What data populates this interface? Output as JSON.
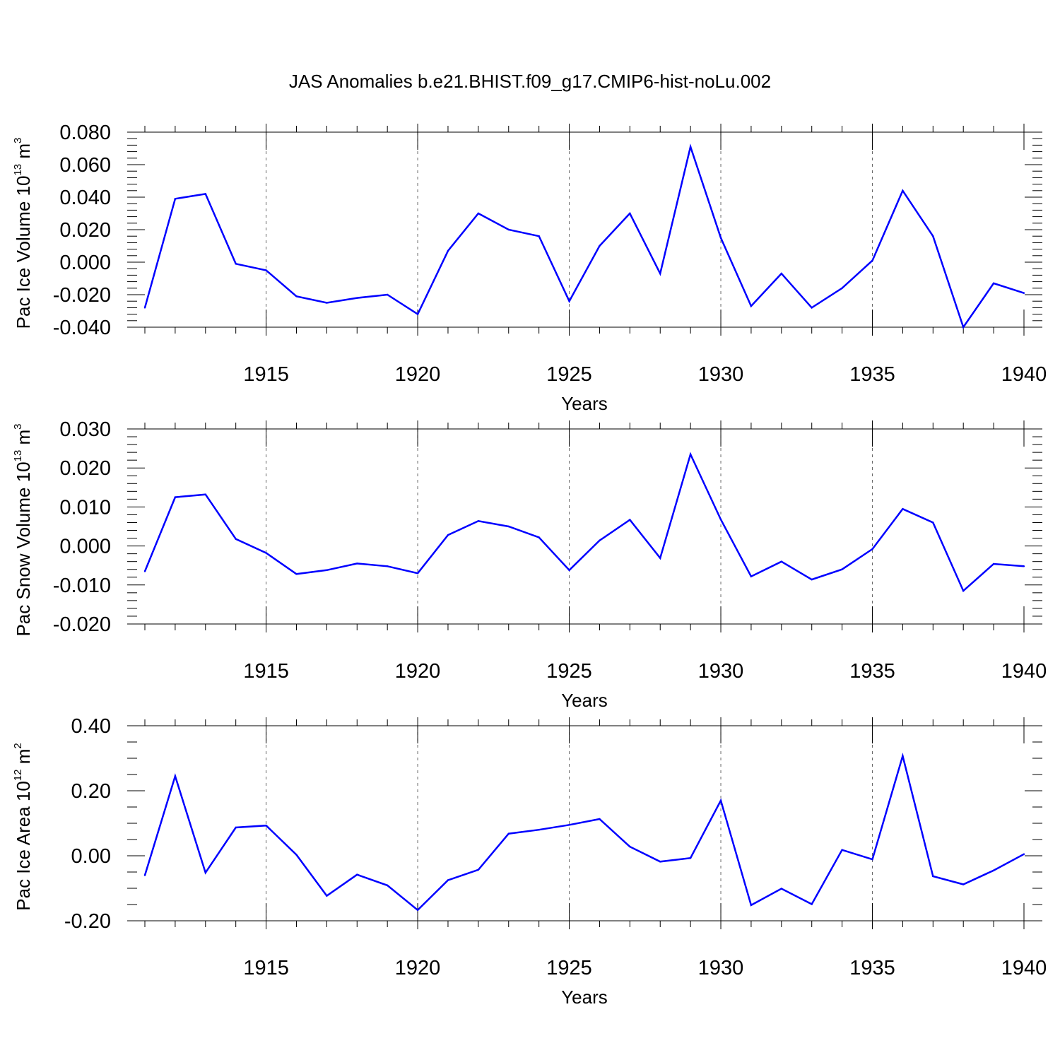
{
  "figure": {
    "title": "JAS Anomalies b.e21.BHIST.f09_g17.CMIP6-hist-noLu.002"
  },
  "chart_data": [
    {
      "type": "line",
      "xlabel": "Years",
      "ylabel_parts": [
        "Pac Ice Volume 10",
        "13",
        " m",
        "3"
      ],
      "xlim": [
        1911,
        1940
      ],
      "ylim": [
        -0.04,
        0.08
      ],
      "x_ticks": [
        1915,
        1920,
        1925,
        1930,
        1935,
        1940
      ],
      "y_ticks": [
        -0.04,
        -0.02,
        0.0,
        0.02,
        0.04,
        0.06,
        0.08
      ],
      "y_tick_labels": [
        "-0.040",
        "-0.020",
        "0.000",
        "0.020",
        "0.040",
        "0.060",
        "0.080"
      ],
      "y_minor_step": 0.004,
      "grid": "dashed vertical at major x ticks",
      "line_color": "#0000ff",
      "x": [
        1911,
        1912,
        1913,
        1914,
        1915,
        1916,
        1917,
        1918,
        1919,
        1920,
        1921,
        1922,
        1923,
        1924,
        1925,
        1926,
        1927,
        1928,
        1929,
        1930,
        1931,
        1932,
        1933,
        1934,
        1935,
        1936,
        1937,
        1938,
        1939,
        1940
      ],
      "y": [
        -0.028,
        0.039,
        0.042,
        -0.001,
        -0.005,
        -0.021,
        -0.025,
        -0.022,
        -0.02,
        -0.032,
        0.007,
        0.03,
        0.02,
        0.016,
        -0.024,
        0.01,
        0.03,
        -0.007,
        0.071,
        0.015,
        -0.027,
        -0.007,
        -0.028,
        -0.016,
        0.001,
        0.044,
        0.016,
        -0.04,
        -0.013,
        -0.019
      ]
    },
    {
      "type": "line",
      "xlabel": "Years",
      "ylabel_parts": [
        "Pac Snow Volume 10",
        "13",
        " m",
        "3"
      ],
      "xlim": [
        1911,
        1940
      ],
      "ylim": [
        -0.02,
        0.03
      ],
      "x_ticks": [
        1915,
        1920,
        1925,
        1930,
        1935,
        1940
      ],
      "y_ticks": [
        -0.02,
        -0.01,
        0.0,
        0.01,
        0.02,
        0.03
      ],
      "y_tick_labels": [
        "-0.020",
        "-0.010",
        "0.000",
        "0.010",
        "0.020",
        "0.030"
      ],
      "y_minor_step": 0.002,
      "grid": "dashed vertical at major x ticks",
      "line_color": "#0000ff",
      "x": [
        1911,
        1912,
        1913,
        1914,
        1915,
        1916,
        1917,
        1918,
        1919,
        1920,
        1921,
        1922,
        1923,
        1924,
        1925,
        1926,
        1927,
        1928,
        1929,
        1930,
        1931,
        1932,
        1933,
        1934,
        1935,
        1936,
        1937,
        1938,
        1939,
        1940
      ],
      "y": [
        -0.0065,
        0.0125,
        0.0132,
        0.0018,
        -0.0018,
        -0.0072,
        -0.0062,
        -0.0045,
        -0.0052,
        -0.007,
        0.0028,
        0.0064,
        0.005,
        0.0022,
        -0.0062,
        0.0014,
        0.0067,
        -0.0031,
        0.0235,
        0.0068,
        -0.0078,
        -0.004,
        -0.0086,
        -0.006,
        -0.0008,
        0.0095,
        0.006,
        -0.0115,
        -0.0046,
        -0.0052
      ]
    },
    {
      "type": "line",
      "xlabel": "Years",
      "ylabel_parts": [
        "Pac Ice Area 10",
        "12",
        " m",
        "2"
      ],
      "xlim": [
        1911,
        1940
      ],
      "ylim": [
        -0.2,
        0.4
      ],
      "x_ticks": [
        1915,
        1920,
        1925,
        1930,
        1935,
        1940
      ],
      "y_ticks": [
        -0.2,
        0.0,
        0.2,
        0.4
      ],
      "y_tick_labels": [
        "-0.20",
        "0.00",
        "0.20",
        "0.40"
      ],
      "y_minor_step": 0.05,
      "grid": "dashed vertical at major x ticks",
      "line_color": "#0000ff",
      "x": [
        1911,
        1912,
        1913,
        1914,
        1915,
        1916,
        1917,
        1918,
        1919,
        1920,
        1921,
        1922,
        1923,
        1924,
        1925,
        1926,
        1927,
        1928,
        1929,
        1930,
        1931,
        1932,
        1933,
        1934,
        1935,
        1936,
        1937,
        1938,
        1939,
        1940
      ],
      "y": [
        -0.06,
        0.245,
        -0.052,
        0.087,
        0.093,
        0.003,
        -0.123,
        -0.058,
        -0.091,
        -0.167,
        -0.075,
        -0.043,
        0.068,
        0.08,
        0.095,
        0.113,
        0.028,
        -0.018,
        -0.007,
        0.17,
        -0.152,
        -0.101,
        -0.149,
        0.018,
        -0.011,
        0.307,
        -0.063,
        -0.088,
        -0.045,
        0.005
      ]
    }
  ]
}
